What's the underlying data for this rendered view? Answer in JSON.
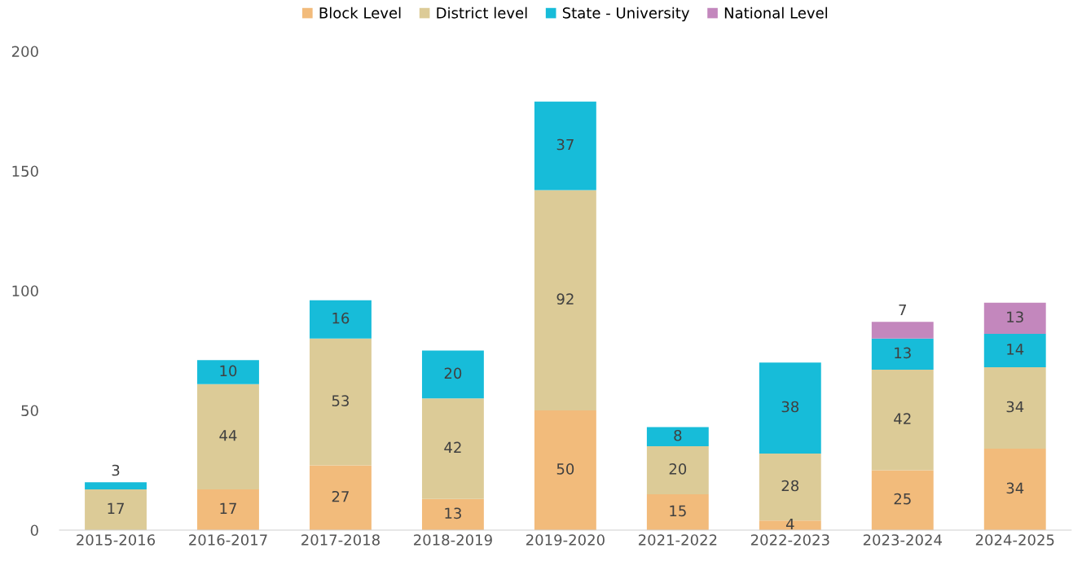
{
  "chart_data": {
    "type": "bar",
    "stacked": true,
    "data_labels": true,
    "legend": "top",
    "grid": false,
    "categories": [
      "2015-2016",
      "2016-2017",
      "2017-2018",
      "2018-2019",
      "2019-2020",
      "2021-2022",
      "2022-2023",
      "2023-2024",
      "2024-2025"
    ],
    "ylim": [
      0,
      200
    ],
    "yticks": [
      0,
      50,
      100,
      150,
      200
    ],
    "series": [
      {
        "name": "Block Level",
        "color": "#f2bb7b",
        "values": [
          null,
          17,
          27,
          13,
          50,
          15,
          4,
          25,
          34
        ]
      },
      {
        "name": "District level",
        "color": "#dccb97",
        "values": [
          17,
          44,
          53,
          42,
          92,
          20,
          28,
          42,
          34
        ]
      },
      {
        "name": "State - University",
        "color": "#17bcd9",
        "values": [
          3,
          10,
          16,
          20,
          37,
          8,
          38,
          13,
          14
        ]
      },
      {
        "name": "National Level",
        "color": "#c387bd",
        "values": [
          null,
          null,
          null,
          null,
          null,
          null,
          null,
          7,
          13
        ]
      }
    ]
  }
}
